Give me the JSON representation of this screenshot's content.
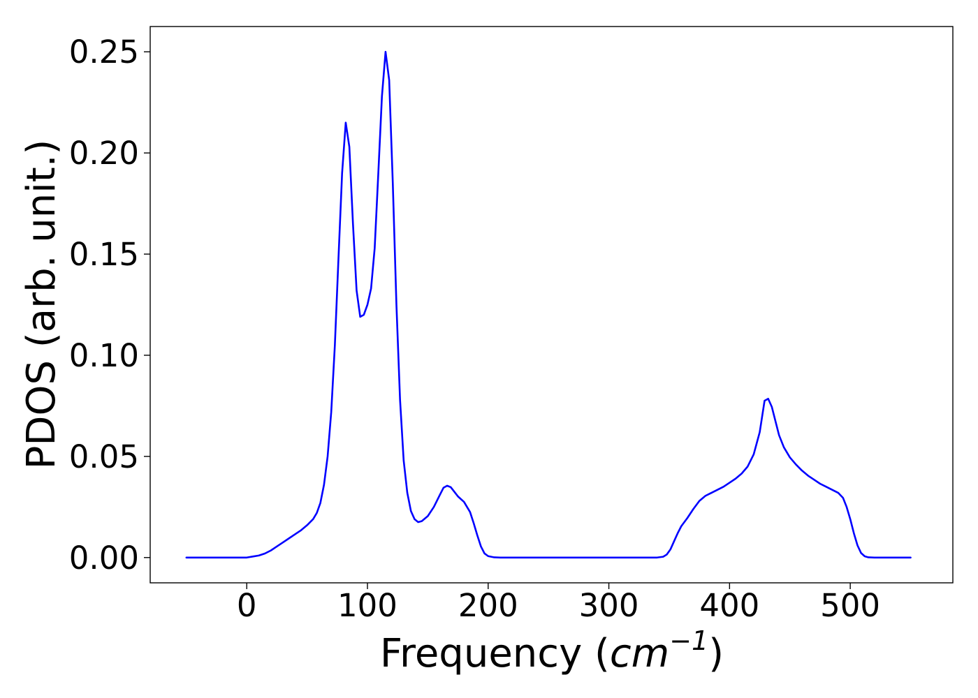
{
  "chart_data": {
    "type": "line",
    "xlabel": {
      "prefix": "Frequency (",
      "math_base": "cm",
      "math_superscript": "−1",
      "suffix": ")"
    },
    "ylabel": "PDOS (arb. unit.)",
    "xlim": [
      -80,
      585
    ],
    "ylim": [
      -0.0125,
      0.2625
    ],
    "x_ticks": [
      0,
      100,
      200,
      300,
      400,
      500
    ],
    "x_tick_labels": [
      "0",
      "100",
      "200",
      "300",
      "400",
      "500"
    ],
    "y_ticks": [
      0.0,
      0.05,
      0.1,
      0.15,
      0.2,
      0.25
    ],
    "y_tick_labels": [
      "0.00",
      "0.05",
      "0.10",
      "0.15",
      "0.20",
      "0.25"
    ],
    "grid": false,
    "legend": false,
    "series": [
      {
        "color": "#0000ff",
        "x": [
          -50,
          -40,
          -30,
          -20,
          -10,
          0,
          5,
          10,
          15,
          20,
          25,
          30,
          35,
          40,
          45,
          50,
          55,
          58,
          61,
          64,
          67,
          70,
          73,
          76,
          79,
          82,
          85,
          88,
          91,
          94,
          97,
          100,
          103,
          106,
          109,
          112,
          115,
          118,
          121,
          124,
          127,
          130,
          133,
          136,
          139,
          142,
          145,
          150,
          155,
          160,
          163,
          166,
          169,
          172,
          175,
          180,
          185,
          188,
          191,
          194,
          197,
          200,
          205,
          210,
          220,
          240,
          260,
          280,
          300,
          320,
          340,
          345,
          348,
          351,
          354,
          357,
          360,
          365,
          370,
          375,
          380,
          385,
          390,
          395,
          400,
          405,
          410,
          415,
          420,
          425,
          429,
          432,
          435,
          438,
          441,
          445,
          450,
          455,
          460,
          465,
          470,
          475,
          480,
          485,
          490,
          494,
          497,
          500,
          503,
          506,
          509,
          512,
          515,
          520,
          530,
          540,
          550
        ],
        "y": [
          0.0,
          0.0,
          0.0,
          0.0,
          0.0,
          0.0,
          0.0005,
          0.001,
          0.002,
          0.0035,
          0.0055,
          0.0075,
          0.0095,
          0.0115,
          0.0135,
          0.016,
          0.019,
          0.022,
          0.027,
          0.036,
          0.05,
          0.072,
          0.105,
          0.148,
          0.19,
          0.215,
          0.203,
          0.165,
          0.132,
          0.119,
          0.12,
          0.125,
          0.133,
          0.153,
          0.19,
          0.228,
          0.25,
          0.236,
          0.185,
          0.125,
          0.078,
          0.048,
          0.032,
          0.023,
          0.019,
          0.0175,
          0.018,
          0.0205,
          0.025,
          0.031,
          0.0345,
          0.0355,
          0.0348,
          0.0325,
          0.0302,
          0.0275,
          0.0225,
          0.017,
          0.011,
          0.0055,
          0.002,
          0.0007,
          0.0001,
          0.0,
          0.0,
          0.0,
          0.0,
          0.0,
          0.0,
          0.0,
          0.0,
          0.0004,
          0.0015,
          0.004,
          0.008,
          0.012,
          0.0155,
          0.0195,
          0.024,
          0.028,
          0.0305,
          0.032,
          0.0335,
          0.035,
          0.037,
          0.039,
          0.0415,
          0.045,
          0.051,
          0.062,
          0.0775,
          0.0785,
          0.0745,
          0.0675,
          0.0605,
          0.0545,
          0.0495,
          0.046,
          0.043,
          0.0405,
          0.0385,
          0.0365,
          0.035,
          0.0335,
          0.032,
          0.0295,
          0.025,
          0.019,
          0.012,
          0.006,
          0.0022,
          0.0006,
          0.0001,
          0.0,
          0.0,
          0.0,
          0.0
        ]
      }
    ]
  }
}
